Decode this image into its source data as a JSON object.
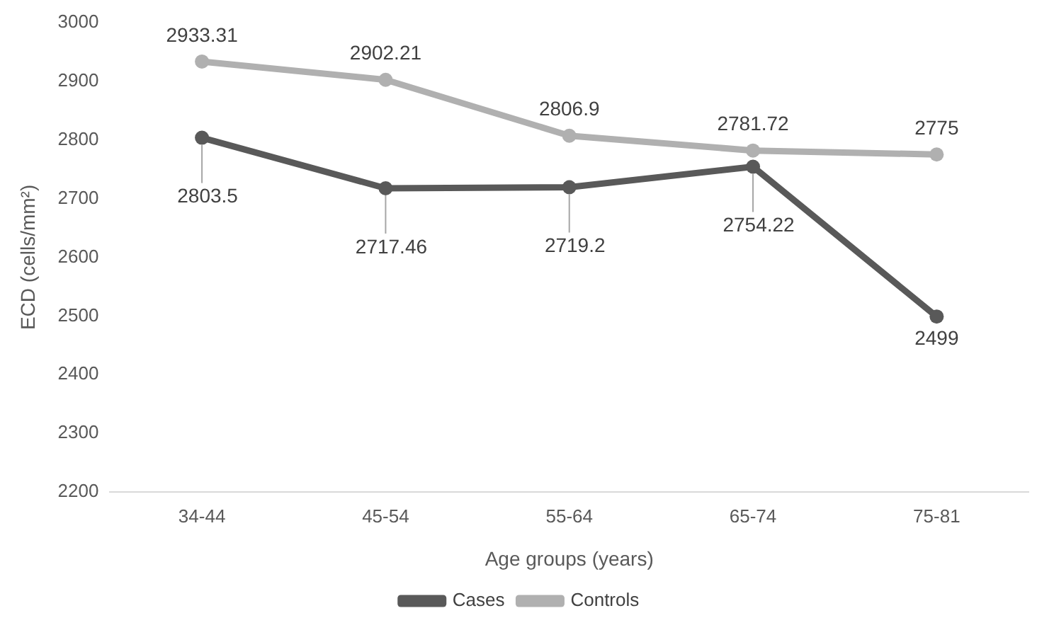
{
  "chart_data": {
    "type": "line",
    "xlabel": "Age groups (years)",
    "ylabel": "ECD (cells/mm²)",
    "categories": [
      "34-44",
      "45-54",
      "55-64",
      "65-74",
      "75-81"
    ],
    "series": [
      {
        "name": "Cases",
        "color": "#595959",
        "values": [
          2803.5,
          2717.46,
          2719.2,
          2754.22,
          2499
        ]
      },
      {
        "name": "Controls",
        "color": "#b0b0b0",
        "values": [
          2933.31,
          2902.21,
          2806.9,
          2781.72,
          2775
        ]
      }
    ],
    "ylim": [
      2200,
      3000
    ],
    "yticks": [
      2200,
      2300,
      2400,
      2500,
      2600,
      2700,
      2800,
      2900,
      3000
    ],
    "grid": false,
    "legend": "bottom",
    "marker": "circle",
    "line_style": "solid",
    "data_labels": true
  }
}
